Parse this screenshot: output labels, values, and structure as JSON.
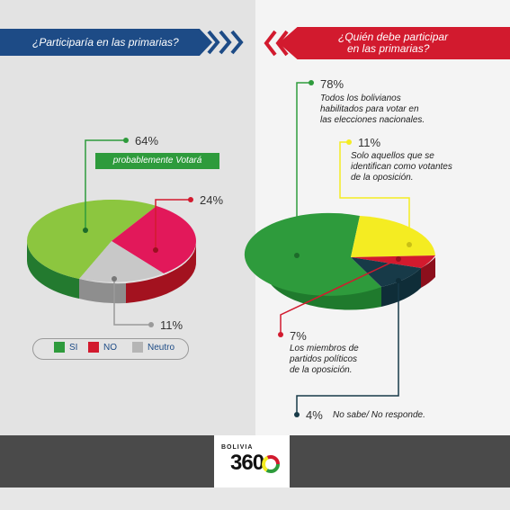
{
  "colors": {
    "green": "#2e9b3c",
    "red": "#d21a2e",
    "gray": "#b5b5b5",
    "yellow": "#f4ec22",
    "dark": "#173a48",
    "blue": "#1d4b86"
  },
  "left": {
    "question": "¿Participaría en las primarias?",
    "badge": "probablemente Votará"
  },
  "right": {
    "question_line1": "¿Quién debe participar",
    "question_line2": "en las primarias?"
  },
  "chart_data": [
    {
      "type": "pie",
      "title": "¿Participaría en las primarias?",
      "slices": [
        {
          "label": "SI",
          "value": 64,
          "display": "64%"
        },
        {
          "label": "NO",
          "value": 24,
          "display": "24%"
        },
        {
          "label": "Neutro",
          "value": 11,
          "display": "11%"
        }
      ],
      "legend": [
        "SI",
        "NO",
        "Neutro"
      ],
      "annotation": "probablemente Votará"
    },
    {
      "type": "pie",
      "title": "¿Quién debe participar en las primarias?",
      "slices": [
        {
          "label": "Todos los bolivianos habilitados para votar en las elecciones nacionales.",
          "value": 78,
          "display": "78%"
        },
        {
          "label": "Solo aquellos que se identifican como votantes de la oposición.",
          "value": 11,
          "display": "11%"
        },
        {
          "label": "Los miembros de partidos políticos de la oposición.",
          "value": 7,
          "display": "7%"
        },
        {
          "label": "No sabe/ No responde.",
          "value": 4,
          "display": "4%"
        }
      ]
    }
  ],
  "right_labels": {
    "a_line1": "Todos los bolivianos",
    "a_line2": "habilitados para votar en",
    "a_line3": "las elecciones nacionales.",
    "b_line1": "Solo aquellos que se",
    "b_line2": "identifican como votantes",
    "b_line3": "de la oposición.",
    "c_line1": "Los miembros de",
    "c_line2": "partidos políticos",
    "c_line3": "de la oposición.",
    "d_line1": "No sabe/ No responde."
  },
  "footer": {
    "brand": "BOLIVIA",
    "number": "360"
  }
}
